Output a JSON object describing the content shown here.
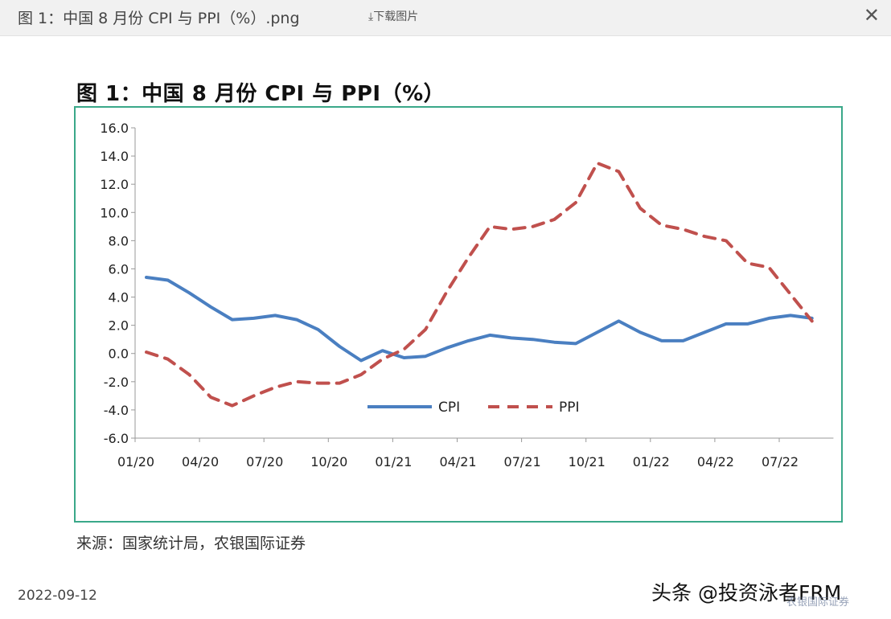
{
  "window": {
    "file_title": "图 1：中国 8 月份 CPI 与 PPI（%）.png",
    "download_label": "⤓下载图片",
    "close_glyph": "✕"
  },
  "figure": {
    "heading": "图 1：中国 8 月份 CPI 与 PPI（%）",
    "source": "来源：国家统计局，农银国际证券"
  },
  "footer": {
    "date": "2022-09-12",
    "watermark": "头条 @投资泳者FRM",
    "watermark_brand": "农银国际证券"
  },
  "chart_data": {
    "type": "line",
    "ylim": [
      -6,
      16
    ],
    "yticks": [
      "16.0",
      "14.0",
      "12.0",
      "10.0",
      "8.0",
      "6.0",
      "4.0",
      "2.0",
      "0.0",
      "-2.0",
      "-4.0",
      "-6.0"
    ],
    "x": [
      "01/20",
      "02/20",
      "03/20",
      "04/20",
      "05/20",
      "06/20",
      "07/20",
      "08/20",
      "09/20",
      "10/20",
      "11/20",
      "12/20",
      "01/21",
      "02/21",
      "03/21",
      "04/21",
      "05/21",
      "06/21",
      "07/21",
      "08/21",
      "09/21",
      "10/21",
      "11/21",
      "12/21",
      "01/22",
      "02/22",
      "03/22",
      "04/22",
      "05/22",
      "06/22",
      "07/22",
      "08/22"
    ],
    "xtick_labels": [
      "01/20",
      "04/20",
      "07/20",
      "10/20",
      "01/21",
      "04/21",
      "07/21",
      "10/21",
      "01/22",
      "04/22",
      "07/22"
    ],
    "legend_position": "inside-bottom-center",
    "series": [
      {
        "name": "CPI",
        "color": "#4a7fc1",
        "style": "solid",
        "values": [
          5.4,
          5.2,
          4.3,
          3.3,
          2.4,
          2.5,
          2.7,
          2.4,
          1.7,
          0.5,
          -0.5,
          0.2,
          -0.3,
          -0.2,
          0.4,
          0.9,
          1.3,
          1.1,
          1.0,
          0.8,
          0.7,
          1.5,
          2.3,
          1.5,
          0.9,
          0.9,
          1.5,
          2.1,
          2.1,
          2.5,
          2.7,
          2.5
        ]
      },
      {
        "name": "PPI",
        "color": "#c0504d",
        "style": "dashed",
        "values": [
          0.1,
          -0.4,
          -1.5,
          -3.1,
          -3.7,
          -3.0,
          -2.4,
          -2.0,
          -2.1,
          -2.1,
          -1.5,
          -0.4,
          0.3,
          1.7,
          4.4,
          6.8,
          9.0,
          8.8,
          9.0,
          9.5,
          10.7,
          13.5,
          12.9,
          10.3,
          9.1,
          8.8,
          8.3,
          8.0,
          6.4,
          6.1,
          4.2,
          2.3
        ]
      }
    ]
  }
}
